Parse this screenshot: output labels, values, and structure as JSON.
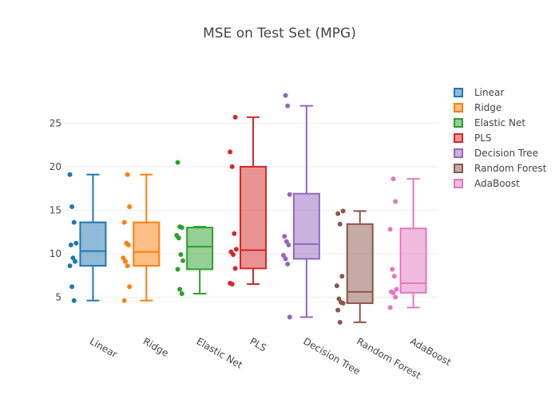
{
  "chart_data": {
    "type": "box",
    "title": "MSE on Test Set (MPG)",
    "xlabel": "",
    "ylabel": "",
    "ylim": [
      2,
      30
    ],
    "yticks": [
      5,
      10,
      15,
      20,
      25
    ],
    "grid": true,
    "legend_position": "right",
    "series": [
      {
        "name": "Linear",
        "color": "#1f77b4",
        "points": [
          19.1,
          15.4,
          13.6,
          11.2,
          11.0,
          9.5,
          9.1,
          8.6,
          6.2,
          4.6
        ],
        "min": 4.6,
        "q1": 8.6,
        "median": 10.3,
        "q3": 13.6,
        "max": 19.1
      },
      {
        "name": "Ridge",
        "color": "#ff7f0e",
        "points": [
          19.1,
          15.4,
          13.6,
          11.2,
          11.0,
          9.5,
          9.1,
          8.6,
          6.2,
          4.6
        ],
        "min": 4.6,
        "q1": 8.6,
        "median": 10.2,
        "q3": 13.6,
        "max": 19.1
      },
      {
        "name": "Elastic Net",
        "color": "#2ca02c",
        "points": [
          20.5,
          13.1,
          13.0,
          12.1,
          11.8,
          9.9,
          9.2,
          8.2,
          5.9,
          5.4
        ],
        "min": 5.4,
        "q1": 8.2,
        "median": 10.8,
        "q3": 13.0,
        "max": 13.1
      },
      {
        "name": "PLS",
        "color": "#d62728",
        "points": [
          25.7,
          21.7,
          20.0,
          12.3,
          10.5,
          10.2,
          9.9,
          8.3,
          6.6,
          6.5
        ],
        "min": 6.5,
        "q1": 8.3,
        "median": 10.4,
        "q3": 20.0,
        "max": 25.7
      },
      {
        "name": "Decision Tree",
        "color": "#9467bd",
        "points": [
          28.2,
          27.0,
          16.8,
          12.0,
          11.4,
          11.0,
          9.8,
          9.4,
          8.8,
          2.7
        ],
        "min": 2.7,
        "q1": 9.4,
        "median": 11.1,
        "q3": 16.9,
        "max": 27.0
      },
      {
        "name": "Random Forest",
        "color": "#8c564b",
        "points": [
          14.9,
          14.6,
          13.4,
          7.4,
          6.3,
          4.8,
          4.4,
          4.3,
          3.5,
          2.1
        ],
        "min": 2.1,
        "q1": 4.3,
        "median": 5.6,
        "q3": 13.4,
        "max": 14.9
      },
      {
        "name": "AdaBoost",
        "color": "#e377c2",
        "points": [
          18.6,
          16.0,
          12.8,
          8.2,
          7.4,
          5.9,
          5.6,
          5.5,
          5.0,
          3.8
        ],
        "min": 3.8,
        "q1": 5.5,
        "median": 6.6,
        "q3": 12.9,
        "max": 18.6
      }
    ]
  }
}
